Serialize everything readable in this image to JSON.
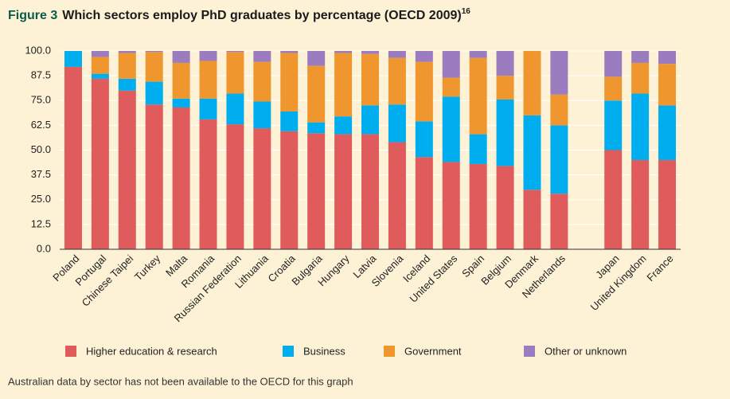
{
  "chart_data": {
    "type": "stacked_bar",
    "title_label": "Figure 3",
    "title": "Which sectors employ PhD graduates by percentage (OECD 2009)",
    "title_ref": "16",
    "footnote": "Australian data by sector has not been available to the OECD for this graph",
    "categories": [
      "Poland",
      "Portugal",
      "Chinese Taipei",
      "Turkey",
      "Malta",
      "Romania",
      "Russian Federation",
      "Lithuania",
      "Croatia",
      "Bulgaria",
      "Hungary",
      "Latvia",
      "Slovenia",
      "Iceland",
      "United States",
      "Spain",
      "Belgium",
      "Denmark",
      "Netherlands",
      null,
      "Japan",
      "United Kingdom",
      "France"
    ],
    "series": [
      {
        "name": "Higher education & research",
        "color": "#e05b5c",
        "values": [
          92,
          86,
          80,
          73,
          71.5,
          65.5,
          63,
          61,
          59.5,
          58.5,
          58,
          58,
          54,
          46.5,
          44,
          43,
          42,
          30,
          28,
          null,
          50,
          45,
          45
        ]
      },
      {
        "name": "Business",
        "color": "#00aeef",
        "values": [
          8,
          2.5,
          6,
          11.5,
          4.5,
          10.5,
          15.5,
          13.5,
          10,
          5.5,
          9,
          14.5,
          19,
          18,
          33,
          15,
          33.5,
          37.5,
          34.5,
          null,
          25,
          33.5,
          27.5
        ]
      },
      {
        "name": "Government",
        "color": "#f0962f",
        "values": [
          0,
          8.5,
          13,
          15,
          18,
          19,
          21,
          20,
          29.5,
          28.5,
          32,
          26,
          23.5,
          30,
          9.5,
          38.5,
          12,
          32.5,
          15.5,
          null,
          12,
          15.5,
          21
        ]
      },
      {
        "name": "Other or unknown",
        "color": "#9b7dbf",
        "values": [
          0,
          3,
          1,
          0.5,
          6,
          5,
          0.5,
          5.5,
          1,
          7.5,
          1,
          1.5,
          3.5,
          5.5,
          13.5,
          3.5,
          12.5,
          0,
          22,
          null,
          13,
          6,
          6.5
        ]
      }
    ],
    "ylim": [
      0,
      100
    ],
    "yticks": [
      {
        "value": 0,
        "label": "0.0"
      },
      12.5,
      {
        "value": 25,
        "label": "25.0"
      },
      37.5,
      {
        "value": 50,
        "label": "50.0"
      },
      62.5,
      {
        "value": 75,
        "label": "75.0"
      },
      87.5,
      {
        "value": 100,
        "label": "100.0"
      }
    ],
    "grid": true,
    "legend": "bottom"
  }
}
